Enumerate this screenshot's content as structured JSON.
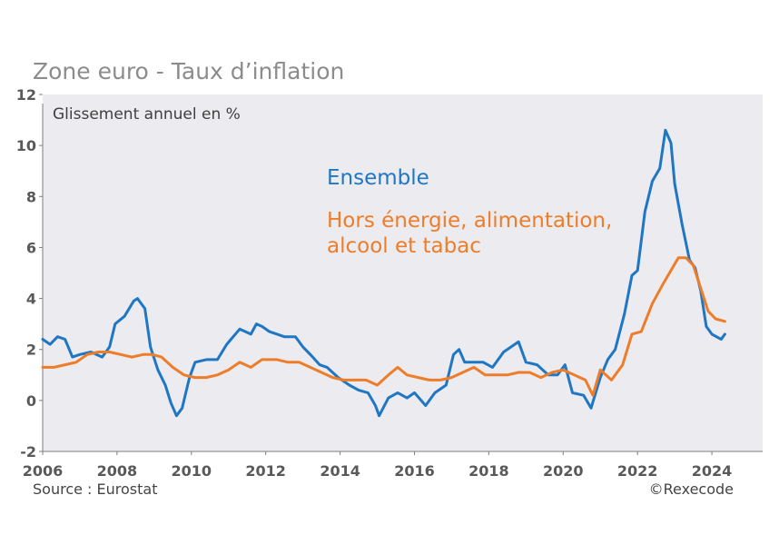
{
  "header": {
    "title": "Zone euro - Taux d’inflation"
  },
  "footer": {
    "source": "Source : Eurostat",
    "credit": "©Rexecode"
  },
  "colors": {
    "ensemble": "#1f77c4",
    "core": "#ee7d2a",
    "plot_bg": "#ebebf0",
    "axis_text": "#595959"
  },
  "chart_data": {
    "type": "line",
    "title": "Zone euro - Taux d’inflation",
    "ylabel": "Glissement annuel en %",
    "xlabel": "",
    "xlim": [
      2006,
      2025
    ],
    "ylim": [
      -2,
      12
    ],
    "xticks": [
      "2006",
      "2008",
      "2010",
      "2012",
      "2014",
      "2016",
      "2018",
      "2020",
      "2022",
      "2024"
    ],
    "yticks": [
      "-2",
      "0",
      "2",
      "4",
      "6",
      "8",
      "10",
      "12"
    ],
    "grid": false,
    "series": [
      {
        "name": "Ensemble",
        "color": "#1f77c4",
        "points": [
          [
            2006.0,
            2.4
          ],
          [
            2006.2,
            2.2
          ],
          [
            2006.4,
            2.5
          ],
          [
            2006.6,
            2.4
          ],
          [
            2006.8,
            1.7
          ],
          [
            2007.0,
            1.8
          ],
          [
            2007.3,
            1.9
          ],
          [
            2007.6,
            1.7
          ],
          [
            2007.8,
            2.1
          ],
          [
            2007.95,
            3.0
          ],
          [
            2008.2,
            3.3
          ],
          [
            2008.45,
            3.9
          ],
          [
            2008.55,
            4.0
          ],
          [
            2008.75,
            3.6
          ],
          [
            2008.9,
            2.1
          ],
          [
            2009.1,
            1.2
          ],
          [
            2009.3,
            0.6
          ],
          [
            2009.45,
            -0.1
          ],
          [
            2009.6,
            -0.6
          ],
          [
            2009.75,
            -0.3
          ],
          [
            2009.95,
            0.9
          ],
          [
            2010.1,
            1.5
          ],
          [
            2010.4,
            1.6
          ],
          [
            2010.7,
            1.6
          ],
          [
            2010.95,
            2.2
          ],
          [
            2011.3,
            2.8
          ],
          [
            2011.6,
            2.6
          ],
          [
            2011.75,
            3.0
          ],
          [
            2011.9,
            2.9
          ],
          [
            2012.1,
            2.7
          ],
          [
            2012.5,
            2.5
          ],
          [
            2012.8,
            2.5
          ],
          [
            2013.0,
            2.1
          ],
          [
            2013.2,
            1.8
          ],
          [
            2013.45,
            1.4
          ],
          [
            2013.65,
            1.3
          ],
          [
            2013.95,
            0.9
          ],
          [
            2014.25,
            0.6
          ],
          [
            2014.5,
            0.4
          ],
          [
            2014.75,
            0.3
          ],
          [
            2014.95,
            -0.2
          ],
          [
            2015.05,
            -0.6
          ],
          [
            2015.3,
            0.1
          ],
          [
            2015.55,
            0.3
          ],
          [
            2015.8,
            0.1
          ],
          [
            2016.0,
            0.3
          ],
          [
            2016.3,
            -0.2
          ],
          [
            2016.55,
            0.3
          ],
          [
            2016.85,
            0.6
          ],
          [
            2017.05,
            1.8
          ],
          [
            2017.2,
            2.0
          ],
          [
            2017.35,
            1.5
          ],
          [
            2017.6,
            1.5
          ],
          [
            2017.85,
            1.5
          ],
          [
            2018.1,
            1.3
          ],
          [
            2018.4,
            1.9
          ],
          [
            2018.6,
            2.1
          ],
          [
            2018.8,
            2.3
          ],
          [
            2019.0,
            1.5
          ],
          [
            2019.3,
            1.4
          ],
          [
            2019.6,
            1.0
          ],
          [
            2019.85,
            1.0
          ],
          [
            2020.05,
            1.4
          ],
          [
            2020.25,
            0.3
          ],
          [
            2020.55,
            0.2
          ],
          [
            2020.75,
            -0.3
          ],
          [
            2021.0,
            0.9
          ],
          [
            2021.2,
            1.6
          ],
          [
            2021.4,
            2.0
          ],
          [
            2021.65,
            3.4
          ],
          [
            2021.85,
            4.9
          ],
          [
            2022.0,
            5.1
          ],
          [
            2022.2,
            7.4
          ],
          [
            2022.4,
            8.6
          ],
          [
            2022.6,
            9.1
          ],
          [
            2022.75,
            10.6
          ],
          [
            2022.9,
            10.1
          ],
          [
            2023.0,
            8.5
          ],
          [
            2023.2,
            6.9
          ],
          [
            2023.4,
            5.5
          ],
          [
            2023.55,
            5.2
          ],
          [
            2023.7,
            4.3
          ],
          [
            2023.85,
            2.9
          ],
          [
            2024.0,
            2.6
          ],
          [
            2024.25,
            2.4
          ],
          [
            2024.35,
            2.6
          ]
        ]
      },
      {
        "name": "Hors énergie, alimentation, alcool et tabac",
        "color": "#ee7d2a",
        "points": [
          [
            2006.0,
            1.3
          ],
          [
            2006.3,
            1.3
          ],
          [
            2006.6,
            1.4
          ],
          [
            2006.9,
            1.5
          ],
          [
            2007.2,
            1.8
          ],
          [
            2007.5,
            1.9
          ],
          [
            2007.8,
            1.9
          ],
          [
            2008.1,
            1.8
          ],
          [
            2008.4,
            1.7
          ],
          [
            2008.7,
            1.8
          ],
          [
            2008.95,
            1.8
          ],
          [
            2009.2,
            1.7
          ],
          [
            2009.5,
            1.3
          ],
          [
            2009.8,
            1.0
          ],
          [
            2010.1,
            0.9
          ],
          [
            2010.4,
            0.9
          ],
          [
            2010.7,
            1.0
          ],
          [
            2011.0,
            1.2
          ],
          [
            2011.3,
            1.5
          ],
          [
            2011.6,
            1.3
          ],
          [
            2011.9,
            1.6
          ],
          [
            2012.3,
            1.6
          ],
          [
            2012.6,
            1.5
          ],
          [
            2012.9,
            1.5
          ],
          [
            2013.2,
            1.3
          ],
          [
            2013.5,
            1.1
          ],
          [
            2013.8,
            0.9
          ],
          [
            2014.1,
            0.8
          ],
          [
            2014.4,
            0.8
          ],
          [
            2014.7,
            0.8
          ],
          [
            2015.0,
            0.6
          ],
          [
            2015.3,
            1.0
          ],
          [
            2015.55,
            1.3
          ],
          [
            2015.8,
            1.0
          ],
          [
            2016.1,
            0.9
          ],
          [
            2016.4,
            0.8
          ],
          [
            2016.7,
            0.8
          ],
          [
            2017.0,
            0.9
          ],
          [
            2017.3,
            1.1
          ],
          [
            2017.6,
            1.3
          ],
          [
            2017.9,
            1.0
          ],
          [
            2018.2,
            1.0
          ],
          [
            2018.5,
            1.0
          ],
          [
            2018.8,
            1.1
          ],
          [
            2019.1,
            1.1
          ],
          [
            2019.4,
            0.9
          ],
          [
            2019.7,
            1.1
          ],
          [
            2020.0,
            1.2
          ],
          [
            2020.3,
            1.0
          ],
          [
            2020.6,
            0.8
          ],
          [
            2020.8,
            0.2
          ],
          [
            2021.0,
            1.2
          ],
          [
            2021.3,
            0.8
          ],
          [
            2021.6,
            1.4
          ],
          [
            2021.85,
            2.6
          ],
          [
            2022.1,
            2.7
          ],
          [
            2022.4,
            3.8
          ],
          [
            2022.7,
            4.6
          ],
          [
            2022.9,
            5.1
          ],
          [
            2023.1,
            5.6
          ],
          [
            2023.3,
            5.6
          ],
          [
            2023.5,
            5.3
          ],
          [
            2023.7,
            4.4
          ],
          [
            2023.9,
            3.5
          ],
          [
            2024.1,
            3.2
          ],
          [
            2024.35,
            3.1
          ]
        ]
      }
    ],
    "annotations": [
      {
        "text": "Ensemble",
        "series": 0
      },
      {
        "text": "Hors énergie, alimentation,",
        "series": 1
      },
      {
        "text": "alcool et tabac",
        "series": 1
      }
    ]
  }
}
